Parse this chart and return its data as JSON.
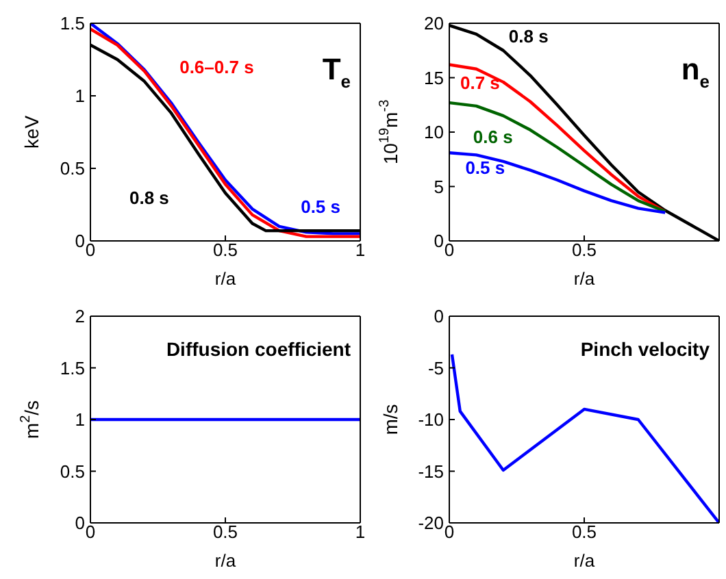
{
  "chart_data": [
    {
      "type": "line",
      "ylabel": "keV",
      "xlabel": "r/a",
      "xlim": [
        0,
        1
      ],
      "xticks": [
        0,
        0.5,
        1
      ],
      "ylim": [
        0,
        1.5
      ],
      "yticks": [
        0,
        0.5,
        1,
        1.5
      ],
      "annotations": [
        "T$_{e}$"
      ],
      "series": [
        {
          "name": "0.5 s",
          "color": "#0000ff",
          "x": [
            0,
            0.1,
            0.2,
            0.3,
            0.4,
            0.5,
            0.6,
            0.7,
            0.8,
            0.9,
            1
          ],
          "values": [
            1.5,
            1.36,
            1.18,
            0.95,
            0.68,
            0.42,
            0.22,
            0.1,
            0.06,
            0.05,
            0.05
          ]
        },
        {
          "name": "0.6–0.7 s",
          "color": "#ff0000",
          "x": [
            0,
            0.1,
            0.2,
            0.3,
            0.4,
            0.5,
            0.6,
            0.7,
            0.8,
            0.9,
            1
          ],
          "values": [
            1.46,
            1.35,
            1.17,
            0.93,
            0.66,
            0.39,
            0.18,
            0.07,
            0.03,
            0.03,
            0.03
          ]
        },
        {
          "name": "0.8 s",
          "color": "#000000",
          "x": [
            0,
            0.1,
            0.2,
            0.3,
            0.4,
            0.5,
            0.6,
            0.65,
            0.8,
            1
          ],
          "values": [
            1.35,
            1.25,
            1.1,
            0.88,
            0.6,
            0.33,
            0.12,
            0.07,
            0.07,
            0.07
          ]
        }
      ]
    },
    {
      "type": "line",
      "ylabel": "10$^{19}$m$^{-3}$",
      "xlabel": "r/a",
      "xlim": [
        0,
        1
      ],
      "xticks": [
        0,
        0.5
      ],
      "ylim": [
        0,
        20
      ],
      "yticks": [
        0,
        5,
        10,
        15,
        20
      ],
      "annotations": [
        "n$_{e}$"
      ],
      "series": [
        {
          "name": "0.8 s",
          "color": "#000000",
          "x": [
            0,
            0.1,
            0.2,
            0.3,
            0.4,
            0.5,
            0.6,
            0.7,
            0.8,
            0.9,
            1
          ],
          "values": [
            19.8,
            19,
            17.5,
            15.2,
            12.5,
            9.7,
            7,
            4.5,
            2.8,
            1.4,
            0
          ]
        },
        {
          "name": "0.7 s",
          "color": "#ff0000",
          "x": [
            0,
            0.1,
            0.2,
            0.3,
            0.4,
            0.5,
            0.6,
            0.7,
            0.8
          ],
          "values": [
            16.2,
            15.8,
            14.6,
            12.8,
            10.6,
            8.3,
            6.1,
            4.1,
            2.7
          ]
        },
        {
          "name": "0.6 s",
          "color": "#006400",
          "x": [
            0,
            0.1,
            0.2,
            0.3,
            0.4,
            0.5,
            0.6,
            0.7,
            0.8
          ],
          "values": [
            12.7,
            12.4,
            11.5,
            10.2,
            8.6,
            6.9,
            5.2,
            3.7,
            2.7
          ]
        },
        {
          "name": "0.5 s",
          "color": "#0000ff",
          "x": [
            0,
            0.1,
            0.2,
            0.3,
            0.4,
            0.5,
            0.6,
            0.7,
            0.8
          ],
          "values": [
            8.1,
            7.9,
            7.3,
            6.5,
            5.6,
            4.6,
            3.7,
            3.0,
            2.6
          ]
        }
      ]
    },
    {
      "type": "line",
      "ylabel": "m$^{2}$/s",
      "xlabel": "r/a",
      "xlim": [
        0,
        1
      ],
      "xticks": [
        0,
        0.5,
        1
      ],
      "ylim": [
        0,
        2
      ],
      "yticks": [
        0,
        0.5,
        1,
        1.5,
        2
      ],
      "annotations": [
        "Diffusion coefficient"
      ],
      "series": [
        {
          "color": "#0000ff",
          "x": [
            0,
            1
          ],
          "values": [
            1,
            1
          ]
        }
      ]
    },
    {
      "type": "line",
      "ylabel": "m/s",
      "xlabel": "r/a",
      "xlim": [
        0,
        1
      ],
      "xticks": [
        0,
        0.5
      ],
      "ylim": [
        -20,
        0
      ],
      "yticks": [
        -20,
        -15,
        -10,
        -5,
        0
      ],
      "annotations": [
        "Pinch velocity"
      ],
      "series": [
        {
          "color": "#0000ff",
          "x": [
            0.01,
            0.04,
            0.2,
            0.5,
            0.7,
            1
          ],
          "values": [
            -3.7,
            -9.2,
            -14.9,
            -9,
            -10,
            -20
          ]
        }
      ]
    }
  ]
}
